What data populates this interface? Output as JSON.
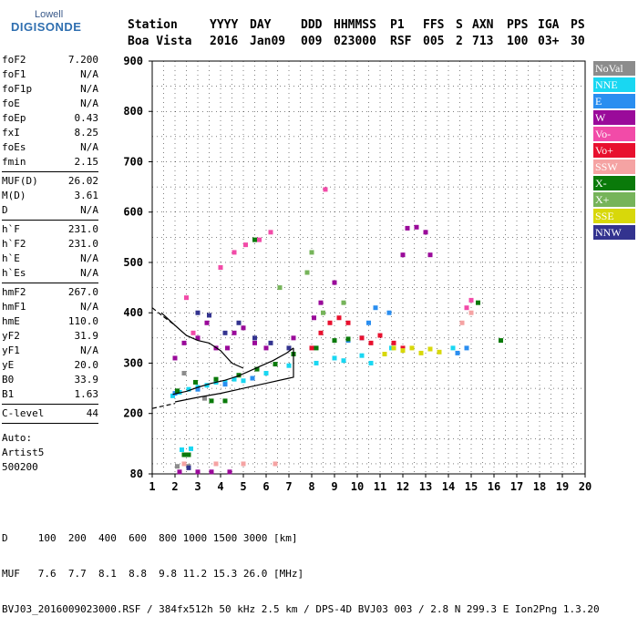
{
  "logo": {
    "line1": "Lowell",
    "line2": "DIGISONDE"
  },
  "header": {
    "columns": [
      {
        "label": "Station",
        "value": "Boa Vista"
      },
      {
        "label": "YYYY",
        "value": "2016"
      },
      {
        "label": "DAY",
        "value": "Jan09"
      },
      {
        "label": "DDD",
        "value": "009"
      },
      {
        "label": "HHMMSS",
        "value": "023000"
      },
      {
        "label": "P1",
        "value": "RSF"
      },
      {
        "label": "FFS",
        "value": "005"
      },
      {
        "label": "S",
        "value": "2"
      },
      {
        "label": "AXN",
        "value": "713"
      },
      {
        "label": "PPS",
        "value": "100"
      },
      {
        "label": "IGA",
        "value": "03+"
      },
      {
        "label": "PS",
        "value": "30"
      }
    ]
  },
  "parameters": [
    [
      {
        "name": "foF2",
        "value": "7.200"
      },
      {
        "name": "foF1",
        "value": "N/A"
      },
      {
        "name": "foF1p",
        "value": "N/A"
      },
      {
        "name": "foE",
        "value": "N/A"
      },
      {
        "name": "foEp",
        "value": "0.43"
      },
      {
        "name": "fxI",
        "value": "8.25"
      },
      {
        "name": "foEs",
        "value": "N/A"
      },
      {
        "name": "fmin",
        "value": "2.15"
      }
    ],
    [
      {
        "name": "MUF(D)",
        "value": "26.02"
      },
      {
        "name": "M(D)",
        "value": "3.61"
      },
      {
        "name": "D",
        "value": "N/A"
      }
    ],
    [
      {
        "name": "h`F",
        "value": "231.0"
      },
      {
        "name": "h`F2",
        "value": "231.0"
      },
      {
        "name": "h`E",
        "value": "N/A"
      },
      {
        "name": "h`Es",
        "value": "N/A"
      }
    ],
    [
      {
        "name": "hmF2",
        "value": "267.0"
      },
      {
        "name": "hmF1",
        "value": "N/A"
      },
      {
        "name": "hmE",
        "value": "110.0"
      },
      {
        "name": "yF2",
        "value": "31.9"
      },
      {
        "name": "yF1",
        "value": "N/A"
      },
      {
        "name": "yE",
        "value": "20.0"
      },
      {
        "name": "B0",
        "value": "33.9"
      },
      {
        "name": "B1",
        "value": "1.63"
      }
    ],
    [
      {
        "name": "C-level",
        "value": "44"
      }
    ]
  ],
  "auto": {
    "line1": "Auto:",
    "line2": "Artist5",
    "line3": "500200"
  },
  "legend": [
    {
      "label": "NoVal",
      "color": "#8c8c8c"
    },
    {
      "label": "NNE",
      "color": "#19d7f2"
    },
    {
      "label": "E",
      "color": "#2a8ef0"
    },
    {
      "label": "W",
      "color": "#9a0a9a"
    },
    {
      "label": "Vo-",
      "color": "#f24ba8"
    },
    {
      "label": "Vo+",
      "color": "#e8102e"
    },
    {
      "label": "SSW",
      "color": "#f5a3a3"
    },
    {
      "label": "X-",
      "color": "#0a7a0a"
    },
    {
      "label": "X+",
      "color": "#76b45a"
    },
    {
      "label": "SSE",
      "color": "#d8d80a"
    },
    {
      "label": "NNW",
      "color": "#33338f"
    }
  ],
  "chart_data": {
    "type": "scatter",
    "xlim": [
      1,
      20
    ],
    "ylim": [
      80,
      900
    ],
    "x_ticks": [
      1,
      2,
      3,
      4,
      5,
      6,
      7,
      8,
      9,
      10,
      11,
      12,
      13,
      14,
      15,
      16,
      17,
      18,
      19,
      20
    ],
    "y_ticks": [
      80,
      200,
      300,
      400,
      500,
      600,
      700,
      800,
      900
    ],
    "grid": true,
    "legend_position": "right",
    "series": [
      {
        "name": "NoVal",
        "points": [
          [
            2.1,
            95
          ],
          [
            2.6,
            95
          ],
          [
            3.3,
            230
          ],
          [
            2.4,
            280
          ]
        ]
      },
      {
        "name": "NNE",
        "points": [
          [
            1.9,
            235
          ],
          [
            2.2,
            242
          ],
          [
            2.6,
            248
          ],
          [
            3.0,
            252
          ],
          [
            3.4,
            256
          ],
          [
            3.8,
            262
          ],
          [
            4.2,
            262
          ],
          [
            4.6,
            268
          ],
          [
            5.0,
            265
          ],
          [
            6.0,
            280
          ],
          [
            7.0,
            295
          ],
          [
            8.2,
            300
          ],
          [
            9.0,
            310
          ],
          [
            9.4,
            305
          ],
          [
            10.2,
            315
          ],
          [
            10.6,
            300
          ],
          [
            11.5,
            330
          ],
          [
            14.2,
            330
          ],
          [
            2.3,
            128
          ],
          [
            2.7,
            130
          ]
        ]
      },
      {
        "name": "E",
        "points": [
          [
            2.0,
            240
          ],
          [
            3.0,
            248
          ],
          [
            4.2,
            258
          ],
          [
            5.4,
            270
          ],
          [
            9.6,
            345
          ],
          [
            10.2,
            350
          ],
          [
            10.5,
            380
          ],
          [
            10.8,
            410
          ],
          [
            11.4,
            400
          ],
          [
            14.4,
            320
          ],
          [
            14.8,
            330
          ]
        ]
      },
      {
        "name": "W",
        "points": [
          [
            2.0,
            310
          ],
          [
            2.4,
            340
          ],
          [
            3.0,
            350
          ],
          [
            3.4,
            380
          ],
          [
            3.8,
            330
          ],
          [
            4.3,
            330
          ],
          [
            4.6,
            360
          ],
          [
            5.0,
            370
          ],
          [
            5.5,
            340
          ],
          [
            6.0,
            330
          ],
          [
            7.2,
            350
          ],
          [
            8.1,
            390
          ],
          [
            8.4,
            420
          ],
          [
            9.0,
            460
          ],
          [
            12.2,
            568
          ],
          [
            12.6,
            570
          ],
          [
            13.0,
            560
          ],
          [
            13.2,
            515
          ],
          [
            12.0,
            515
          ],
          [
            2.2,
            84
          ],
          [
            3.0,
            84
          ],
          [
            3.6,
            84
          ],
          [
            4.4,
            84
          ]
        ]
      },
      {
        "name": "Vo-",
        "points": [
          [
            4.0,
            490
          ],
          [
            4.6,
            520
          ],
          [
            5.1,
            535
          ],
          [
            5.7,
            545
          ],
          [
            6.2,
            560
          ],
          [
            2.5,
            430
          ],
          [
            2.8,
            360
          ],
          [
            8.6,
            645
          ],
          [
            14.8,
            410
          ],
          [
            15.0,
            425
          ]
        ]
      },
      {
        "name": "Vo+",
        "points": [
          [
            8.0,
            330
          ],
          [
            8.4,
            360
          ],
          [
            8.8,
            380
          ],
          [
            9.2,
            390
          ],
          [
            9.6,
            380
          ],
          [
            10.2,
            350
          ],
          [
            10.6,
            340
          ],
          [
            11.0,
            355
          ],
          [
            11.6,
            340
          ],
          [
            12.0,
            330
          ]
        ]
      },
      {
        "name": "SSW",
        "points": [
          [
            2.4,
            100
          ],
          [
            3.8,
            100
          ],
          [
            5.0,
            100
          ],
          [
            6.4,
            100
          ],
          [
            14.6,
            380
          ],
          [
            15.0,
            400
          ]
        ]
      },
      {
        "name": "X-",
        "points": [
          [
            2.1,
            245
          ],
          [
            2.9,
            262
          ],
          [
            3.8,
            268
          ],
          [
            4.8,
            276
          ],
          [
            5.6,
            288
          ],
          [
            6.4,
            298
          ],
          [
            7.2,
            318
          ],
          [
            8.2,
            330
          ],
          [
            9.0,
            345
          ],
          [
            9.6,
            348
          ],
          [
            3.6,
            225
          ],
          [
            4.2,
            225
          ],
          [
            2.4,
            118
          ],
          [
            2.6,
            118
          ],
          [
            16.3,
            345
          ],
          [
            15.3,
            420
          ],
          [
            5.5,
            545
          ]
        ]
      },
      {
        "name": "X+",
        "points": [
          [
            8.5,
            400
          ],
          [
            8.0,
            520
          ],
          [
            6.6,
            450
          ],
          [
            7.8,
            480
          ],
          [
            9.4,
            420
          ]
        ]
      },
      {
        "name": "SSE",
        "points": [
          [
            11.2,
            318
          ],
          [
            11.6,
            330
          ],
          [
            12.0,
            325
          ],
          [
            12.4,
            330
          ],
          [
            12.8,
            320
          ],
          [
            13.2,
            328
          ],
          [
            13.6,
            322
          ]
        ]
      },
      {
        "name": "NNW",
        "points": [
          [
            3.0,
            400
          ],
          [
            3.5,
            395
          ],
          [
            4.2,
            360
          ],
          [
            4.8,
            380
          ],
          [
            5.5,
            350
          ],
          [
            6.2,
            340
          ],
          [
            7.0,
            330
          ],
          [
            2.6,
            92
          ]
        ]
      }
    ],
    "curves": [
      {
        "name": "profile-solid",
        "style": "solid",
        "points": [
          [
            1.9,
            238
          ],
          [
            2.5,
            244
          ],
          [
            3.0,
            252
          ],
          [
            3.6,
            260
          ],
          [
            4.2,
            266
          ],
          [
            4.8,
            275
          ],
          [
            5.3,
            285
          ],
          [
            5.8,
            295
          ],
          [
            6.3,
            305
          ],
          [
            6.9,
            320
          ],
          [
            7.2,
            330
          ]
        ]
      },
      {
        "name": "profile-upper",
        "style": "solid",
        "points": [
          [
            1.4,
            400
          ],
          [
            2.0,
            375
          ],
          [
            2.5,
            355
          ],
          [
            3.0,
            345
          ],
          [
            3.5,
            340
          ],
          [
            4.0,
            325
          ],
          [
            4.5,
            300
          ],
          [
            5.0,
            290
          ]
        ]
      },
      {
        "name": "profile-lower",
        "style": "solid",
        "points": [
          [
            2.0,
            223
          ],
          [
            3.0,
            232
          ],
          [
            4.0,
            240
          ],
          [
            5.0,
            250
          ],
          [
            6.0,
            260
          ],
          [
            7.0,
            270
          ],
          [
            7.2,
            272
          ],
          [
            7.2,
            330
          ]
        ]
      },
      {
        "name": "fit-dashed-lower",
        "style": "dashed",
        "points": [
          [
            1,
            210
          ],
          [
            1.5,
            215
          ],
          [
            2.0,
            220
          ]
        ]
      },
      {
        "name": "fit-dashed-upper",
        "style": "dashed",
        "points": [
          [
            1,
            410
          ],
          [
            1.5,
            392
          ],
          [
            2.0,
            375
          ]
        ]
      }
    ]
  },
  "footer": {
    "d_row": "D     100  200  400  600  800 1000 1500 3000 [km]",
    "muf_row": "MUF   7.6  7.7  8.1  8.8  9.8 11.2 15.3 26.0 [MHz]",
    "file_row": "BVJ03_2016009023000.RSF / 384fx512h 50 kHz 2.5 km / DPS-4D BVJ03 003 / 2.8 N 299.3 E Ion2Png 1.3.20"
  }
}
